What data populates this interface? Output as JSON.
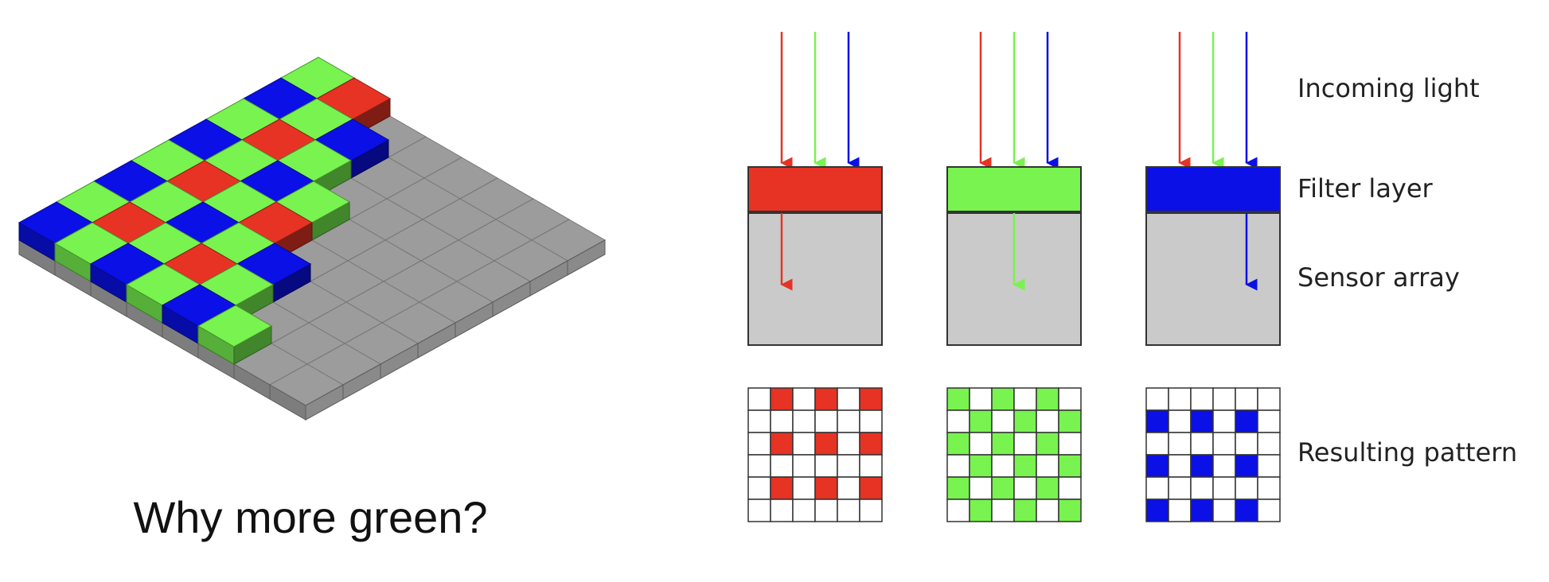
{
  "caption": "Why more green?",
  "labels": {
    "incoming_light": "Incoming light",
    "filter_layer": "Filter layer",
    "sensor_array": "Sensor array",
    "resulting_pattern": "Resulting pattern"
  },
  "colors": {
    "red": "#e63324",
    "green": "#78f34f",
    "blue": "#0a10e6",
    "sensor_gray": "#cacaca",
    "base_gray": "#9c9c9c",
    "outline": "#333333"
  },
  "filters": [
    {
      "name": "red",
      "pass_index": 0
    },
    {
      "name": "green",
      "pass_index": 1
    },
    {
      "name": "blue",
      "pass_index": 2
    }
  ],
  "mosaic": {
    "rows": 6,
    "cols": 6,
    "pattern": [
      [
        "G",
        "R",
        "G",
        "R",
        "G",
        "R"
      ],
      [
        "B",
        "G",
        "B",
        "G",
        "B",
        "G"
      ],
      [
        "G",
        "R",
        "G",
        "R",
        "G",
        "R"
      ],
      [
        "B",
        "G",
        "B",
        "G",
        "B",
        "G"
      ],
      [
        "G",
        "R",
        "G",
        "R",
        "G",
        "R"
      ],
      [
        "B",
        "G",
        "B",
        "G",
        "B",
        "G"
      ]
    ]
  }
}
